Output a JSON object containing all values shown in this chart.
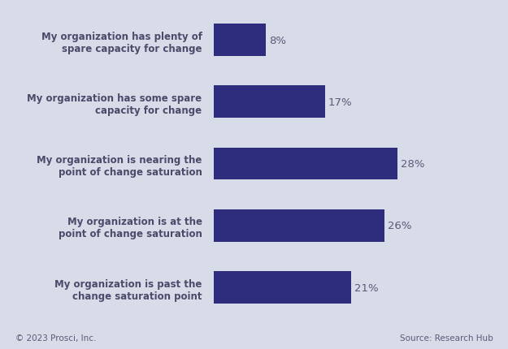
{
  "categories": [
    "My organization has plenty of\nspare capacity for change",
    "My organization has some spare\ncapacity for change",
    "My organization is nearing the\npoint of change saturation",
    "My organization is at the\npoint of change saturation",
    "My organization is past the\nchange saturation point"
  ],
  "values": [
    8,
    17,
    28,
    26,
    21
  ],
  "bar_color": "#2e2d7d",
  "background_color": "#d8dce8",
  "label_color": "#4a4a6a",
  "value_color": "#5a5a7a",
  "footer_left": "© 2023 Prosci, Inc.",
  "footer_right": "Source: Research Hub",
  "bar_height": 0.52,
  "xlim": [
    0,
    34
  ],
  "label_fontsize": 8.5,
  "value_fontsize": 9.5,
  "footer_fontsize": 7.5
}
